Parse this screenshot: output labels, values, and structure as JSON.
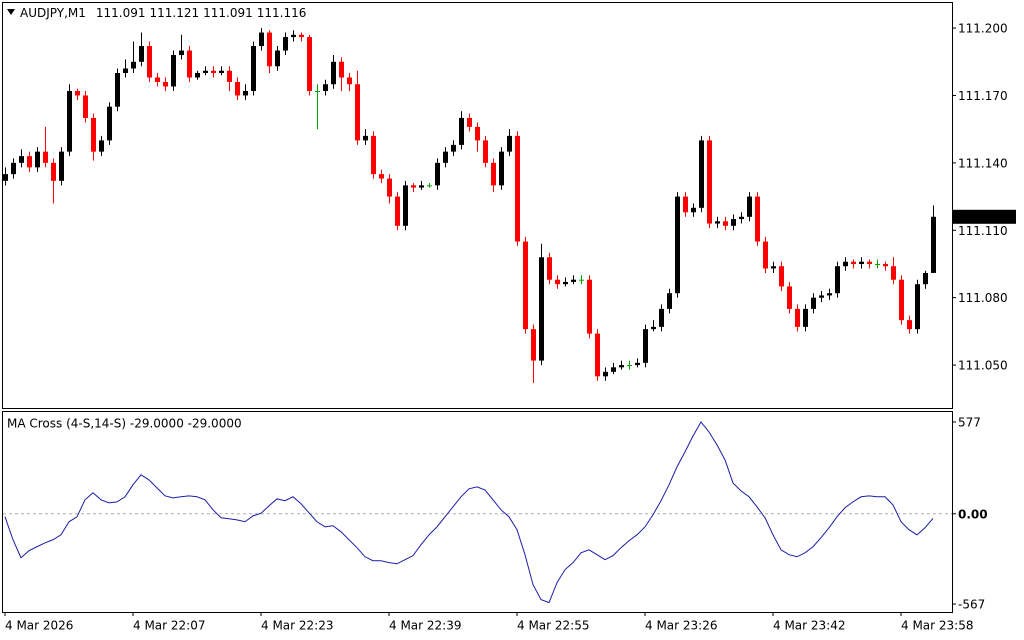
{
  "chart_data": [
    {
      "type": "candlestick",
      "symbol": "AUDJPY,M1",
      "up_color": "#000000",
      "down_color": "#ff0000",
      "doji_color": "#00a000",
      "ylim": [
        111.0309,
        111.2116
      ],
      "yticks": [
        {
          "value": 111.05,
          "label": "111.050"
        },
        {
          "value": 111.08,
          "label": "111.080"
        },
        {
          "value": 111.11,
          "label": "111.110"
        },
        {
          "value": 111.14,
          "label": "111.140"
        },
        {
          "value": 111.17,
          "label": "111.170"
        },
        {
          "value": 111.2,
          "label": "111.200"
        }
      ],
      "candles": [
        [
          111.132,
          111.138,
          111.13,
          111.135
        ],
        [
          111.135,
          111.142,
          111.133,
          111.14
        ],
        [
          111.14,
          111.146,
          111.138,
          111.143
        ],
        [
          111.143,
          111.145,
          111.136,
          111.138
        ],
        [
          111.138,
          111.147,
          111.136,
          111.145
        ],
        [
          111.145,
          111.156,
          111.138,
          111.14
        ],
        [
          111.14,
          111.142,
          111.122,
          111.132
        ],
        [
          111.132,
          111.147,
          111.13,
          111.145
        ],
        [
          111.145,
          111.175,
          111.143,
          111.172
        ],
        [
          111.172,
          111.173,
          111.168,
          111.17
        ],
        [
          111.17,
          111.172,
          111.158,
          111.16
        ],
        [
          111.16,
          111.162,
          111.141,
          111.145
        ],
        [
          111.145,
          111.152,
          111.143,
          111.15
        ],
        [
          111.15,
          111.167,
          111.148,
          111.165
        ],
        [
          111.165,
          111.182,
          111.163,
          111.18
        ],
        [
          111.18,
          111.186,
          111.178,
          111.182
        ],
        [
          111.182,
          111.194,
          111.18,
          111.185
        ],
        [
          111.185,
          111.198,
          111.183,
          111.192
        ],
        [
          111.192,
          111.194,
          111.176,
          111.178
        ],
        [
          111.178,
          111.18,
          111.174,
          111.176
        ],
        [
          111.176,
          111.178,
          111.172,
          111.174
        ],
        [
          111.174,
          111.19,
          111.172,
          111.188
        ],
        [
          111.188,
          111.197,
          111.186,
          111.19
        ],
        [
          111.19,
          111.192,
          111.176,
          111.178
        ],
        [
          111.178,
          111.181,
          111.177,
          111.18
        ],
        [
          111.18,
          111.183,
          111.179,
          111.181
        ],
        [
          111.181,
          111.183,
          111.178,
          111.18
        ],
        [
          111.18,
          111.183,
          111.179,
          111.181
        ],
        [
          111.181,
          111.183,
          111.172,
          111.176
        ],
        [
          111.176,
          111.178,
          111.168,
          111.17
        ],
        [
          111.17,
          111.175,
          111.168,
          111.172
        ],
        [
          111.172,
          111.194,
          111.17,
          111.192
        ],
        [
          111.192,
          111.2,
          111.19,
          111.198
        ],
        [
          111.198,
          111.199,
          111.18,
          111.183
        ],
        [
          111.183,
          111.192,
          111.181,
          111.19
        ],
        [
          111.19,
          111.198,
          111.188,
          111.196
        ],
        [
          111.196,
          111.199,
          111.194,
          111.197
        ],
        [
          111.197,
          111.198,
          111.194,
          111.196
        ],
        [
          111.196,
          111.197,
          111.17,
          111.172
        ],
        [
          111.172,
          111.175,
          111.155,
          111.172
        ],
        [
          111.172,
          111.177,
          111.17,
          111.175
        ],
        [
          111.175,
          111.188,
          111.173,
          111.185
        ],
        [
          111.185,
          111.187,
          111.172,
          111.178
        ],
        [
          111.178,
          111.18,
          111.172,
          111.175
        ],
        [
          111.175,
          111.181,
          111.148,
          111.15
        ],
        [
          111.15,
          111.155,
          111.148,
          111.152
        ],
        [
          111.152,
          111.154,
          111.133,
          111.135
        ],
        [
          111.135,
          111.137,
          111.131,
          111.133
        ],
        [
          111.133,
          111.135,
          111.122,
          111.125
        ],
        [
          111.125,
          111.127,
          111.11,
          111.112
        ],
        [
          111.112,
          111.132,
          111.11,
          111.13
        ],
        [
          111.13,
          111.131,
          111.127,
          111.129
        ],
        [
          111.129,
          111.132,
          111.128,
          111.13
        ],
        [
          111.13,
          111.131,
          111.129,
          111.13
        ],
        [
          111.13,
          111.142,
          111.128,
          111.14
        ],
        [
          111.14,
          111.147,
          111.138,
          111.145
        ],
        [
          111.145,
          111.15,
          111.143,
          111.148
        ],
        [
          111.148,
          111.163,
          111.146,
          111.16
        ],
        [
          111.16,
          111.162,
          111.154,
          111.156
        ],
        [
          111.156,
          111.158,
          111.145,
          111.15
        ],
        [
          111.15,
          111.152,
          111.138,
          111.14
        ],
        [
          111.14,
          111.142,
          111.127,
          111.13
        ],
        [
          111.13,
          111.147,
          111.128,
          111.145
        ],
        [
          111.145,
          111.155,
          111.143,
          111.152
        ],
        [
          111.152,
          111.154,
          111.103,
          111.105
        ],
        [
          111.105,
          111.107,
          111.064,
          111.066
        ],
        [
          111.066,
          111.068,
          111.042,
          111.052
        ],
        [
          111.052,
          111.104,
          111.05,
          111.098
        ],
        [
          111.098,
          111.1,
          111.086,
          111.088
        ],
        [
          111.088,
          111.09,
          111.084,
          111.086
        ],
        [
          111.086,
          111.089,
          111.085,
          111.087
        ],
        [
          111.087,
          111.09,
          111.086,
          111.088
        ],
        [
          111.088,
          111.09,
          111.086,
          111.088
        ],
        [
          111.088,
          111.09,
          111.062,
          111.064
        ],
        [
          111.064,
          111.066,
          111.043,
          111.045
        ],
        [
          111.045,
          111.049,
          111.043,
          111.047
        ],
        [
          111.047,
          111.051,
          111.046,
          111.049
        ],
        [
          111.049,
          111.052,
          111.048,
          111.05
        ],
        [
          111.05,
          111.052,
          111.048,
          111.05
        ],
        [
          111.05,
          111.053,
          111.049,
          111.051
        ],
        [
          111.051,
          111.068,
          111.049,
          111.066
        ],
        [
          111.066,
          111.07,
          111.065,
          111.067
        ],
        [
          111.067,
          111.077,
          111.065,
          111.075
        ],
        [
          111.075,
          111.084,
          111.073,
          111.082
        ],
        [
          111.082,
          111.127,
          111.08,
          111.125
        ],
        [
          111.125,
          111.127,
          111.116,
          111.118
        ],
        [
          111.118,
          111.122,
          111.116,
          111.12
        ],
        [
          111.12,
          111.152,
          111.118,
          111.15
        ],
        [
          111.15,
          111.152,
          111.111,
          111.113
        ],
        [
          111.113,
          111.116,
          111.111,
          111.114
        ],
        [
          111.114,
          111.116,
          111.11,
          111.112
        ],
        [
          111.112,
          111.117,
          111.11,
          111.115
        ],
        [
          111.115,
          111.118,
          111.113,
          111.116
        ],
        [
          111.116,
          111.127,
          111.114,
          111.125
        ],
        [
          111.125,
          111.127,
          111.103,
          111.105
        ],
        [
          111.105,
          111.107,
          111.091,
          111.093
        ],
        [
          111.093,
          111.096,
          111.091,
          111.094
        ],
        [
          111.094,
          111.096,
          111.083,
          111.085
        ],
        [
          111.085,
          111.087,
          111.073,
          111.075
        ],
        [
          111.075,
          111.077,
          111.065,
          111.067
        ],
        [
          111.067,
          111.077,
          111.065,
          111.075
        ],
        [
          111.075,
          111.082,
          111.073,
          111.08
        ],
        [
          111.08,
          111.083,
          111.078,
          111.081
        ],
        [
          111.081,
          111.084,
          111.079,
          111.082
        ],
        [
          111.082,
          111.096,
          111.08,
          111.094
        ],
        [
          111.094,
          111.098,
          111.092,
          111.096
        ],
        [
          111.096,
          111.097,
          111.093,
          111.095
        ],
        [
          111.095,
          111.098,
          111.093,
          111.096
        ],
        [
          111.096,
          111.097,
          111.093,
          111.095
        ],
        [
          111.095,
          111.097,
          111.093,
          111.095
        ],
        [
          111.095,
          111.096,
          111.092,
          111.094
        ],
        [
          111.094,
          111.098,
          111.086,
          111.088
        ],
        [
          111.088,
          111.09,
          111.068,
          111.07
        ],
        [
          111.07,
          111.072,
          111.064,
          111.066
        ],
        [
          111.066,
          111.088,
          111.064,
          111.086
        ],
        [
          111.086,
          111.092,
          111.084,
          111.091
        ],
        [
          111.091,
          111.121,
          111.091,
          111.116
        ]
      ]
    },
    {
      "type": "line",
      "title": "MA Cross (4-S,14-S)  -29.0000 -29.0000",
      "color": "#1c1ca8",
      "ylim": [
        -617,
        646
      ],
      "yticks": [
        -567,
        {
          "value": 0,
          "label": "0.00"
        },
        577
      ],
      "categories": [
        "4 Mar 2026",
        null,
        null,
        null,
        null,
        null,
        null,
        null,
        null,
        null,
        null,
        null,
        null,
        null,
        null,
        null,
        "4 Mar 22:07",
        null,
        null,
        null,
        null,
        null,
        null,
        null,
        null,
        null,
        null,
        null,
        null,
        null,
        null,
        null,
        "4 Mar 22:23",
        null,
        null,
        null,
        null,
        null,
        null,
        null,
        null,
        null,
        null,
        null,
        null,
        null,
        null,
        null,
        "4 Mar 22:39",
        null,
        null,
        null,
        null,
        null,
        null,
        null,
        null,
        null,
        null,
        null,
        null,
        null,
        null,
        null,
        "4 Mar 22:55",
        null,
        null,
        null,
        null,
        null,
        null,
        null,
        null,
        null,
        null,
        null,
        null,
        null,
        null,
        null,
        "4 Mar 23:26",
        null,
        null,
        null,
        null,
        null,
        null,
        null,
        null,
        null,
        null,
        null,
        null,
        null,
        null,
        null,
        "4 Mar 23:42",
        null,
        null,
        null,
        null,
        null,
        null,
        null,
        null,
        null,
        null,
        null,
        null,
        null,
        null,
        null,
        "4 Mar 23:58",
        null,
        null,
        null,
        null
      ],
      "values": [
        -19,
        -163,
        -276,
        -232,
        -207,
        -182,
        -163,
        -132,
        -50,
        -19,
        88,
        132,
        88,
        69,
        75,
        107,
        182,
        245,
        213,
        163,
        113,
        100,
        107,
        113,
        107,
        88,
        25,
        -25,
        -31,
        -38,
        -50,
        -13,
        3,
        50,
        94,
        82,
        107,
        63,
        6,
        -50,
        -82,
        -75,
        -113,
        -163,
        -213,
        -270,
        -295,
        -295,
        -307,
        -314,
        -288,
        -263,
        -194,
        -132,
        -82,
        -19,
        44,
        107,
        157,
        169,
        150,
        88,
        25,
        -19,
        -100,
        -257,
        -445,
        -539,
        -558,
        -433,
        -351,
        -307,
        -245,
        -226,
        -257,
        -288,
        -263,
        -213,
        -169,
        -132,
        -82,
        -6,
        82,
        182,
        295,
        389,
        489,
        577,
        514,
        433,
        339,
        194,
        144,
        107,
        44,
        -25,
        -132,
        -226,
        -257,
        -270,
        -245,
        -207,
        -150,
        -88,
        -19,
        38,
        75,
        107,
        113,
        107,
        107,
        56,
        -50,
        -100,
        -132,
        -88,
        -29
      ]
    }
  ]
}
